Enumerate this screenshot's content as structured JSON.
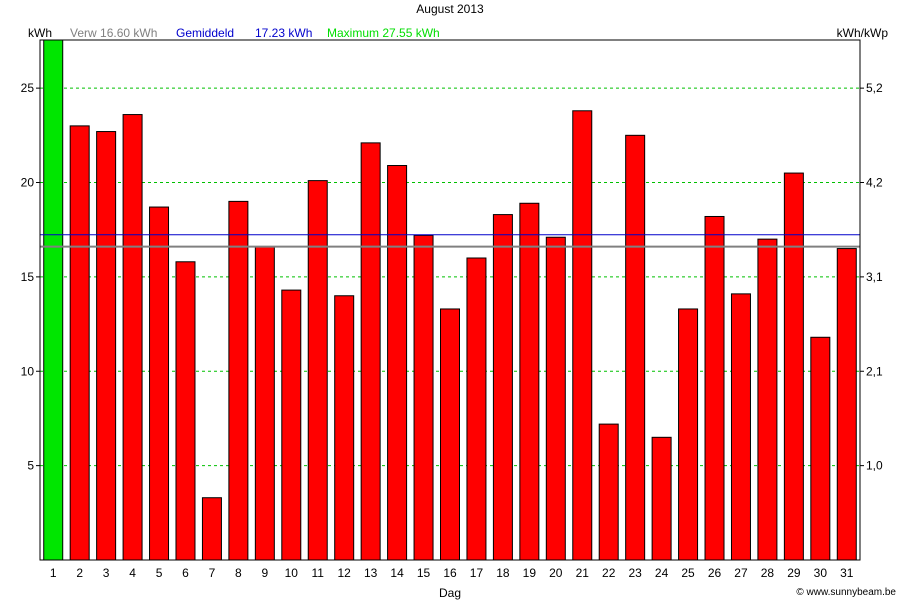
{
  "chart_data": {
    "type": "bar",
    "title": "August 2013",
    "ylabel_left": "kWh",
    "ylabel_right": "kWh/kWp",
    "xlabel": "Dag",
    "legend": {
      "expected_label": "Verw",
      "expected_value": "16.60 kWh",
      "average_label": "Gemiddeld",
      "average_value": "17.23 kWh",
      "maximum_label": "Maximum",
      "maximum_value": "27.55 kWh"
    },
    "reference_lines": {
      "expected": 16.6,
      "average": 17.23
    },
    "ylim": [
      0,
      27.55
    ],
    "left_ticks": [
      5,
      10,
      15,
      20,
      25
    ],
    "right_ticks": [
      {
        "value": 5,
        "label": "1,0"
      },
      {
        "value": 10,
        "label": "2,1"
      },
      {
        "value": 15,
        "label": "3,1"
      },
      {
        "value": 20,
        "label": "4,2"
      },
      {
        "value": 25,
        "label": "5,2"
      }
    ],
    "categories": [
      "1",
      "2",
      "3",
      "4",
      "5",
      "6",
      "7",
      "8",
      "9",
      "10",
      "11",
      "12",
      "13",
      "14",
      "15",
      "16",
      "17",
      "18",
      "19",
      "20",
      "21",
      "22",
      "23",
      "24",
      "25",
      "26",
      "27",
      "28",
      "29",
      "30",
      "31"
    ],
    "values": [
      27.55,
      23.0,
      22.7,
      23.6,
      18.7,
      15.8,
      3.3,
      19.0,
      16.6,
      14.3,
      20.1,
      14.0,
      22.1,
      20.9,
      17.2,
      13.3,
      16.0,
      18.3,
      18.9,
      17.1,
      23.8,
      7.2,
      22.5,
      6.5,
      13.3,
      18.2,
      14.1,
      17.0,
      20.5,
      11.8,
      16.5
    ],
    "highlight_index": 0,
    "colors": {
      "bar": "#ff0000",
      "bar_max": "#00e600",
      "expected_line": "#808080",
      "average_line": "#0000cc",
      "grid": "#00c000",
      "maximum_text": "#00dd00"
    },
    "grid": true
  },
  "footer": {
    "copyright": "© www.sunnybeam.be"
  }
}
